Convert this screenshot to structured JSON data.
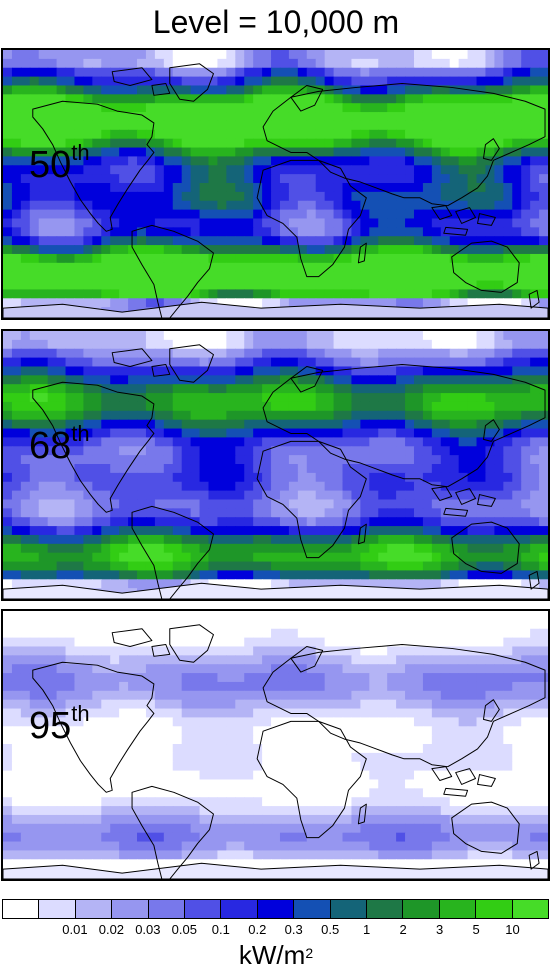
{
  "title": "Level = 10,000 m",
  "panels": [
    {
      "label": "50",
      "suffix": "th",
      "intensity": 1.0
    },
    {
      "label": "68",
      "suffix": "th",
      "intensity": 0.72
    },
    {
      "label": "95",
      "suffix": "th",
      "intensity": 0.32
    }
  ],
  "colorbar": {
    "colors": [
      "#ffffff",
      "#dcdcff",
      "#b4b4f5",
      "#9696f0",
      "#7878eb",
      "#5050e6",
      "#2828e1",
      "#0000dc",
      "#1450b4",
      "#146478",
      "#1e7846",
      "#1e9628",
      "#28b41e",
      "#32cd14",
      "#46dc28"
    ],
    "ticks": [
      "0.01",
      "0.02",
      "0.03",
      "0.05",
      "0.1",
      "0.2",
      "0.3",
      "0.5",
      "1",
      "2",
      "3",
      "5",
      "10"
    ],
    "unit_base": "kW/m",
    "unit_exp": "2"
  }
}
